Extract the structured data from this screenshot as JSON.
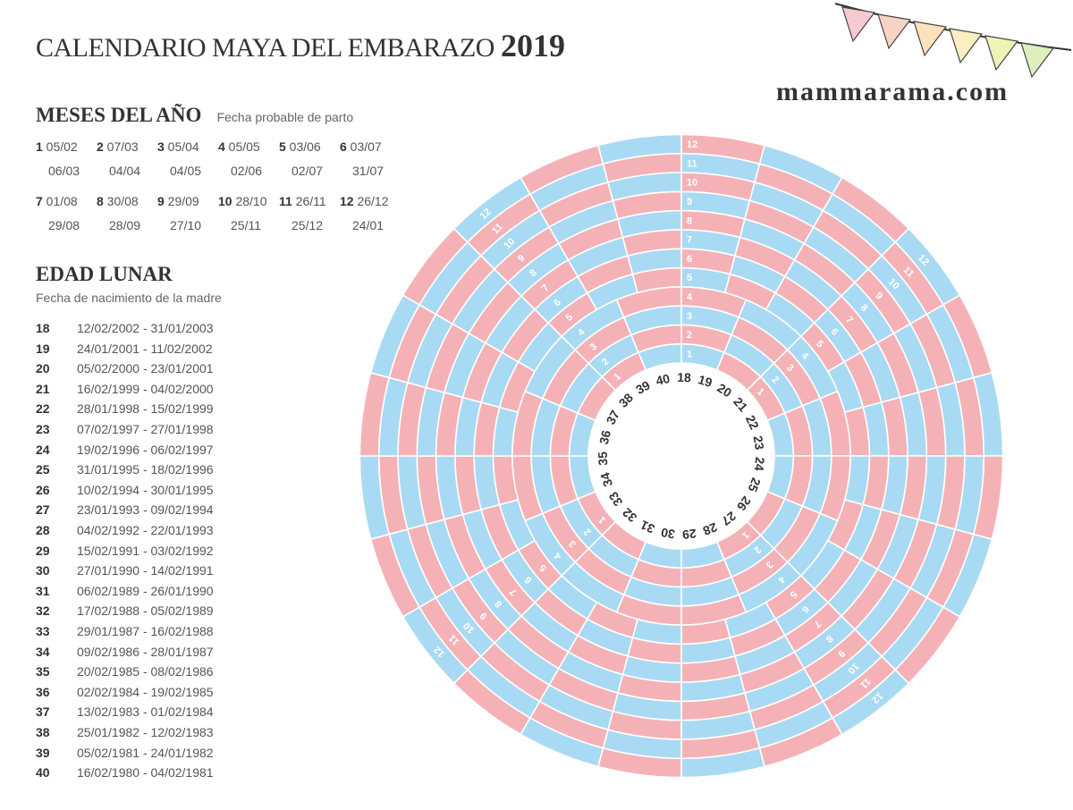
{
  "header": {
    "title": "CALENDARIO MAYA DEL EMBARAZO",
    "year": "2019",
    "site": "mammarama.com"
  },
  "months_section": {
    "heading": "MESES DEL AÑO",
    "subheading": "Fecha probable de parto",
    "months": [
      {
        "n": "1",
        "start": "05/02",
        "end": "06/03"
      },
      {
        "n": "2",
        "start": "07/03",
        "end": "04/04"
      },
      {
        "n": "3",
        "start": "05/04",
        "end": "04/05"
      },
      {
        "n": "4",
        "start": "05/05",
        "end": "02/06"
      },
      {
        "n": "5",
        "start": "03/06",
        "end": "02/07"
      },
      {
        "n": "6",
        "start": "03/07",
        "end": "31/07"
      },
      {
        "n": "7",
        "start": "01/08",
        "end": "29/08"
      },
      {
        "n": "8",
        "start": "30/08",
        "end": "28/09"
      },
      {
        "n": "9",
        "start": "29/09",
        "end": "27/10"
      },
      {
        "n": "10",
        "start": "28/10",
        "end": "25/11"
      },
      {
        "n": "11",
        "start": "26/11",
        "end": "25/12"
      },
      {
        "n": "12",
        "start": "26/12",
        "end": "24/01"
      }
    ]
  },
  "lunar_section": {
    "heading": "EDAD LUNAR",
    "subheading": "Fecha de nacimiento de la madre",
    "rows": [
      {
        "age": "18",
        "range": "12/02/2002 - 31/01/2003"
      },
      {
        "age": "19",
        "range": "24/01/2001 - 11/02/2002"
      },
      {
        "age": "20",
        "range": "05/02/2000 - 23/01/2001"
      },
      {
        "age": "21",
        "range": "16/02/1999 - 04/02/2000"
      },
      {
        "age": "22",
        "range": "28/01/1998 - 15/02/1999"
      },
      {
        "age": "23",
        "range": "07/02/1997 - 27/01/1998"
      },
      {
        "age": "24",
        "range": "19/02/1996 - 06/02/1997"
      },
      {
        "age": "25",
        "range": "31/01/1995 - 18/02/1996"
      },
      {
        "age": "26",
        "range": "10/02/1994 - 30/01/1995"
      },
      {
        "age": "27",
        "range": "23/01/1993 - 09/02/1994"
      },
      {
        "age": "28",
        "range": "04/02/1992 - 22/01/1993"
      },
      {
        "age": "29",
        "range": "15/02/1991 - 03/02/1992"
      },
      {
        "age": "30",
        "range": "27/01/1990 - 14/02/1991"
      },
      {
        "age": "31",
        "range": "06/02/1989 - 26/01/1990"
      },
      {
        "age": "32",
        "range": "17/02/1988 - 05/02/1989"
      },
      {
        "age": "33",
        "range": "29/01/1987 - 16/02/1988"
      },
      {
        "age": "34",
        "range": "09/02/1986 - 28/01/1987"
      },
      {
        "age": "35",
        "range": "20/02/1985 - 08/02/1986"
      },
      {
        "age": "36",
        "range": "02/02/1984 - 19/02/1985"
      },
      {
        "age": "37",
        "range": "13/02/1983 - 01/02/1984"
      },
      {
        "age": "38",
        "range": "25/01/1982 - 12/02/1983"
      },
      {
        "age": "39",
        "range": "05/02/1981 - 24/01/1982"
      },
      {
        "age": "40",
        "range": "16/02/1980 - 04/02/1981"
      }
    ]
  },
  "wheel": {
    "ages": [
      "18",
      "19",
      "20",
      "21",
      "22",
      "23",
      "24",
      "25",
      "26",
      "27",
      "28",
      "29",
      "30",
      "31",
      "32",
      "33",
      "34",
      "35",
      "36",
      "37",
      "38",
      "39",
      "40"
    ],
    "ring_labels": [
      "1",
      "2",
      "3",
      "4",
      "5",
      "6",
      "7",
      "8",
      "9",
      "10",
      "11",
      "12"
    ],
    "colors": {
      "pink": "#f4b2b7",
      "blue": "#a9daf3",
      "label_dark": "#333333",
      "label_light": "#ffffff"
    }
  },
  "bunting": {
    "colors": [
      "#f7c9d0",
      "#f8d3c4",
      "#fbe2bd",
      "#fbeec0",
      "#eef3b8",
      "#dbf0bd"
    ]
  }
}
